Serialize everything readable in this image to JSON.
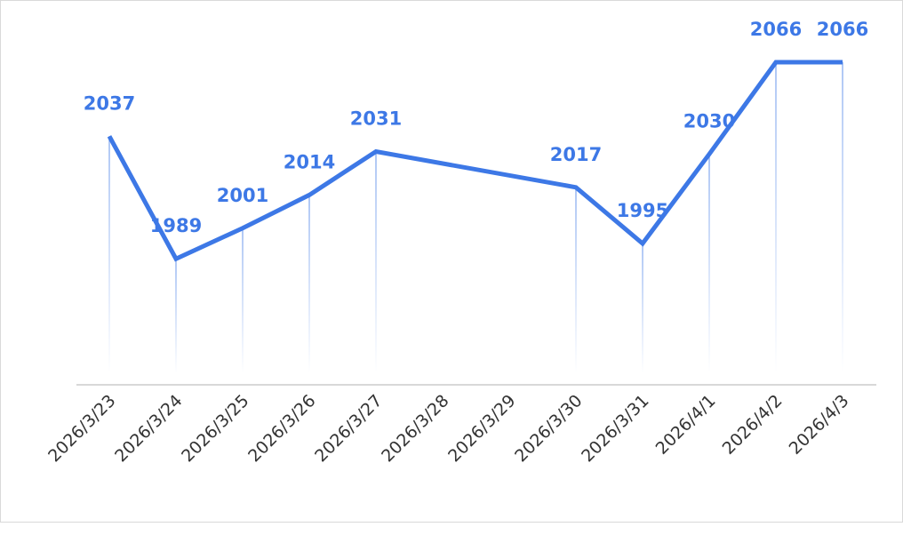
{
  "chart_data": {
    "type": "line",
    "categories": [
      "2026/3/23",
      "2026/3/24",
      "2026/3/25",
      "2026/3/26",
      "2026/3/27",
      "2026/3/28",
      "2026/3/29",
      "2026/3/30",
      "2026/3/31",
      "2026/4/1",
      "2026/4/2",
      "2026/4/3"
    ],
    "values": [
      2037,
      1989,
      2001,
      2014,
      2031,
      null,
      null,
      2017,
      1995,
      2030,
      2066,
      2066
    ],
    "title": "",
    "xlabel": "",
    "ylabel": "",
    "ylim": [
      1960,
      2070
    ],
    "grid": false,
    "legend": "none",
    "line_color": "#3d78e6",
    "axis_color": "#cccccc"
  }
}
